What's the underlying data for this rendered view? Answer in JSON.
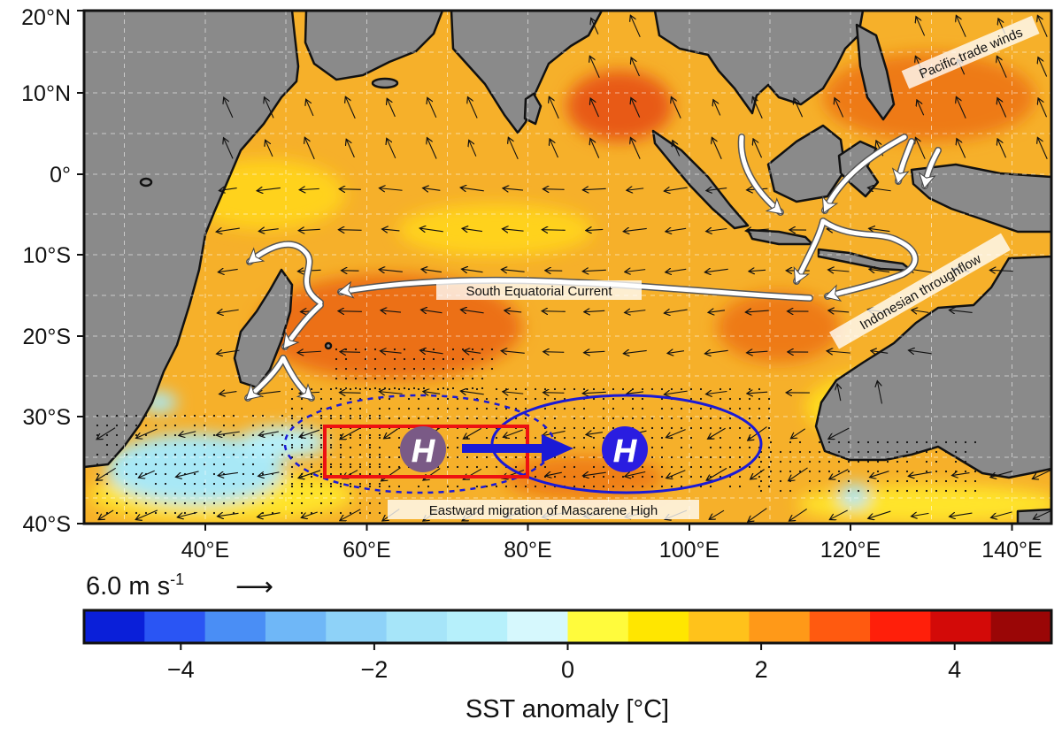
{
  "map": {
    "lat_labels": [
      "20°N",
      "10°N",
      "0°",
      "10°S",
      "20°S",
      "30°S",
      "40°S"
    ],
    "lon_labels": [
      "40°E",
      "60°E",
      "80°E",
      "100°E",
      "120°E",
      "140°E"
    ],
    "lon_range": [
      25,
      145
    ],
    "lat_range": [
      -40,
      20
    ],
    "land_color": "#8a8a8a",
    "ocean_warm_color": "#f6b02a",
    "ocean_hot_color": "#ec6a12",
    "ocean_cool_color": "#a8e8f6",
    "grid": true
  },
  "annotations": {
    "pacific_trade_winds": "Pacific trade winds",
    "south_equatorial_current": "South Equatorial Current",
    "indonesian_throughflow": "Indonesian throughflow",
    "mascarene_migration": "Eastward migration of Mascarene High",
    "high_symbol": "H"
  },
  "legend": {
    "wind_scale_value": "6.0 m s",
    "wind_scale_exp": "-1",
    "wind_scale_arrow": "⟶"
  },
  "colorbar": {
    "label": "SST anomaly [°C]",
    "tick_labels": [
      "−4",
      "−2",
      "0",
      "2",
      "4"
    ],
    "range": [
      -5,
      5
    ],
    "colors": [
      "#0a1fd9",
      "#2a55f4",
      "#4a8ef5",
      "#6fb7f7",
      "#8ed2f8",
      "#a6e5f9",
      "#b6f0fb",
      "#d6f8fd",
      "#fffb3c",
      "#ffe600",
      "#ffc21b",
      "#ff9918",
      "#ff5a10",
      "#ff1f0a",
      "#d30a08",
      "#9a0606"
    ]
  },
  "colors": {
    "box_red": "#ee1111",
    "ellipse_blue": "#1a1ad6",
    "arrow_blue": "#1a1ad6",
    "high_old": "#7a5a86",
    "high_new": "#2a1de0",
    "current_arrow": "#ffffff"
  }
}
